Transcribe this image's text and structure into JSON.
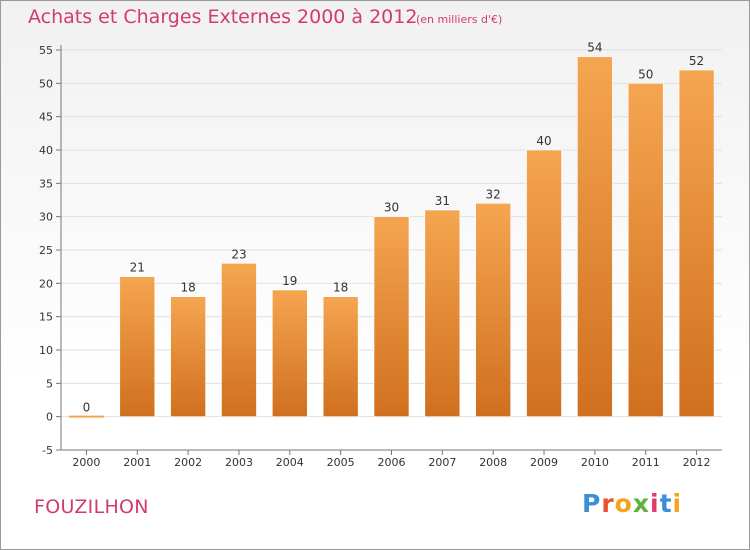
{
  "header": {
    "title": "Achats et Charges Externes 2000 à 2012",
    "subtitle": "(en milliers d'€)"
  },
  "footer": {
    "commune": "FOUZILHON",
    "brand": "Proxiti",
    "brand_colors": [
      "#3a8fd8",
      "#e8532e",
      "#f2a41c",
      "#5db33a",
      "#e23a6e",
      "#3a8fd8",
      "#f2a41c"
    ]
  },
  "colors": {
    "title": "#d23b6b",
    "bar_top": "#f5a550",
    "bar_bottom": "#d0701e",
    "axis": "#777777",
    "grid": "#e0e0e0",
    "label": "#333333"
  },
  "chart_data": {
    "type": "bar",
    "categories": [
      "2000",
      "2001",
      "2002",
      "2003",
      "2004",
      "2005",
      "2006",
      "2007",
      "2008",
      "2009",
      "2010",
      "2011",
      "2012"
    ],
    "values": [
      0,
      21,
      18,
      23,
      19,
      18,
      30,
      31,
      32,
      40,
      54,
      50,
      52
    ],
    "title": "Achats et Charges Externes 2000 à 2012",
    "subtitle": "(en milliers d'€)",
    "ylim": [
      -5,
      55
    ],
    "yticks": [
      -5,
      0,
      5,
      10,
      15,
      20,
      25,
      30,
      35,
      40,
      45,
      50,
      55
    ],
    "grid": true,
    "data_labels": true
  }
}
